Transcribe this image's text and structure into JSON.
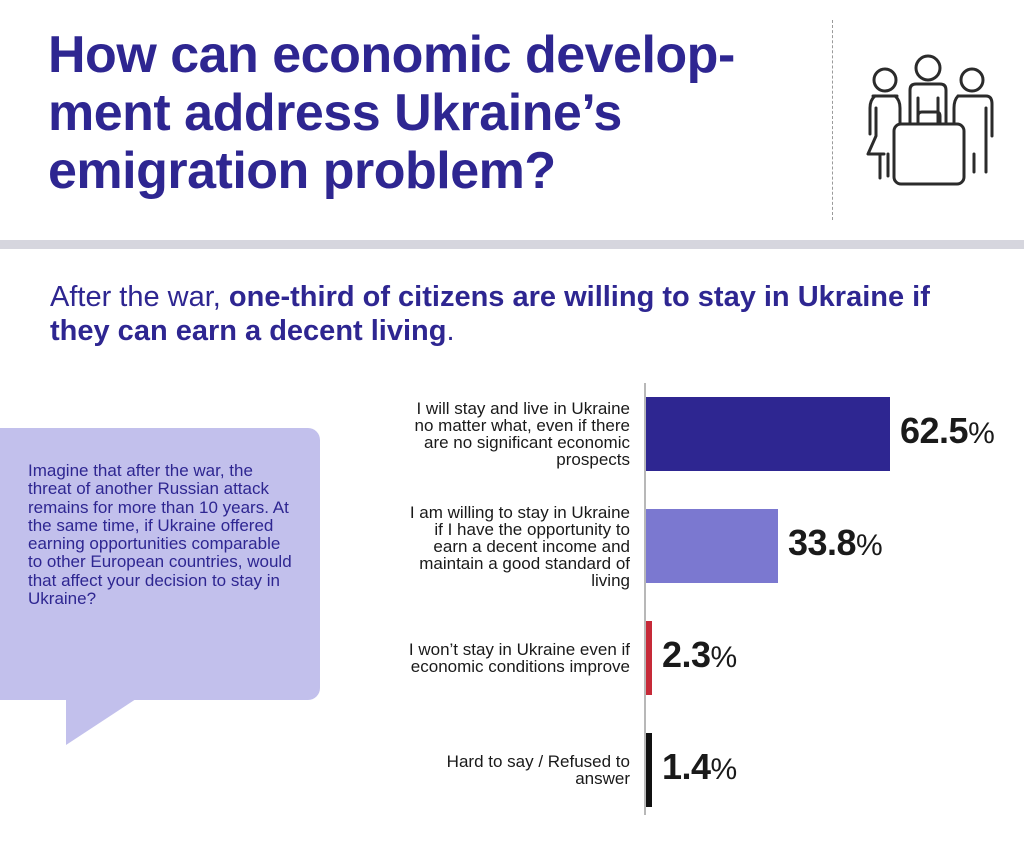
{
  "header": {
    "title_lines": [
      "How can economic develop-",
      "ment address Ukraine’s",
      "emigration problem?"
    ],
    "icon": "people-with-suitcase-icon"
  },
  "subtitle": {
    "plain": "After the war, ",
    "bold": "one-third of citizens are willing to stay in Ukraine if they can earn a decent living",
    "end": "."
  },
  "question": {
    "text": "Imagine that after the war, the threat of another Rus­sian attack remains for more than 10 years. At the same time, if Ukraine offered earning opportuni­ties comparable to other European countries, would that affect your decision to stay in Ukraine?"
  },
  "colors": {
    "title": "#2e2691",
    "bubble": "#c2c0ec",
    "rule": "#d6d6de"
  },
  "chart_data": {
    "type": "bar",
    "orientation": "horizontal",
    "unit": "%",
    "xlim": [
      0,
      62.5
    ],
    "categories": [
      "I will stay and live in Ukraine no matter what, even if there are no significant economic prospects",
      "I am willing to stay in Ukraine if I have the opportunity to earn a decent income and maintain a good standard of living",
      "I won’t stay in Ukraine even if economic conditions improve",
      "Hard to say / Refused to answer"
    ],
    "category_lines": [
      [
        "I will stay and live in Ukraine",
        "no matter what, even if there",
        "are no significant economic",
        "prospects"
      ],
      [
        "I am willing to stay in Ukraine",
        "if I have the opportunity to",
        "earn a decent income and",
        "maintain a good standard of",
        "living"
      ],
      [
        "I won’t stay in Ukraine even if",
        "economic conditions improve"
      ],
      [
        "Hard to say / Refused to",
        "answer"
      ]
    ],
    "values": [
      62.5,
      33.8,
      2.3,
      1.4
    ],
    "value_labels": [
      "62.5",
      "33.8",
      "2.3",
      "1.4"
    ],
    "bar_colors": [
      "#2e2691",
      "#7b78d0",
      "#c62a38",
      "#111111"
    ]
  }
}
